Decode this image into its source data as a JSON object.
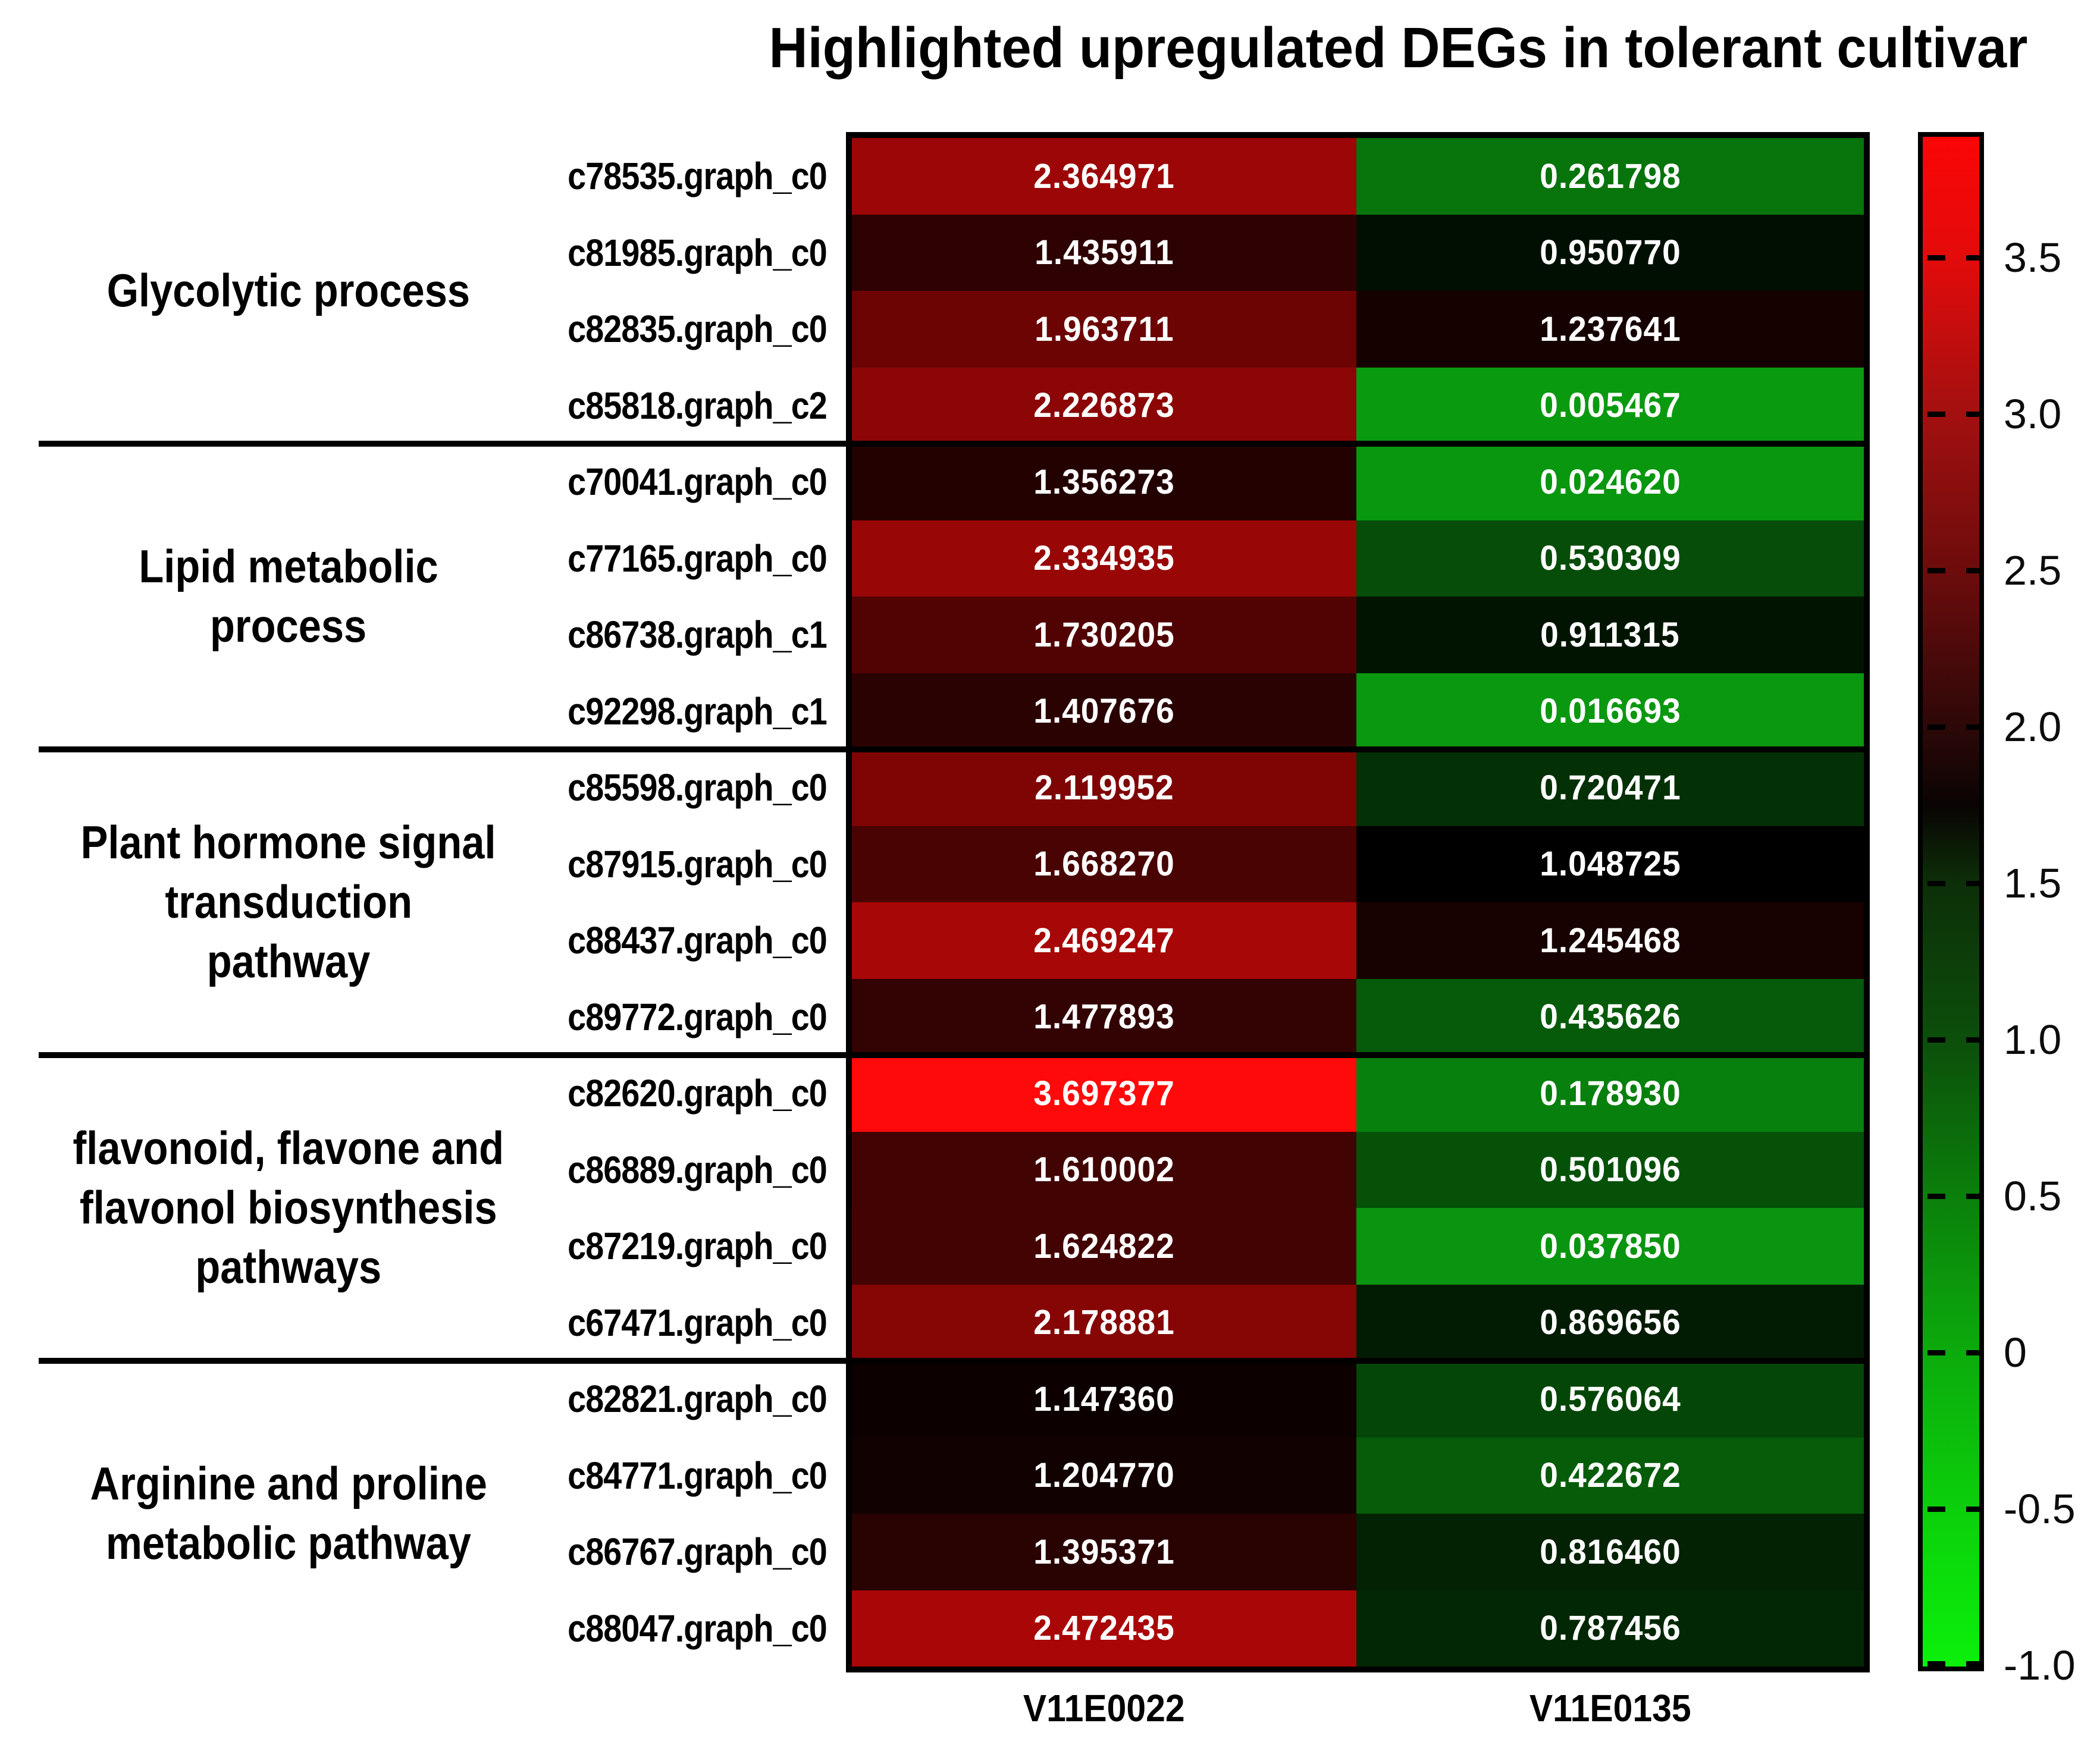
{
  "title": "Highlighted upregulated DEGs in tolerant cultivar",
  "chart_data": {
    "type": "heatmap",
    "title": "Highlighted upregulated DEGs in tolerant cultivar",
    "columns": [
      "V11E0022",
      "V11E0135"
    ],
    "value_range_note": "log-fold-change style values, green-black-red scale",
    "groups": [
      {
        "label": "Glycolytic process",
        "label_lines": [
          "Glycolytic process"
        ],
        "rows": [
          {
            "gene": "c78535.graph_c0",
            "values": [
              "2.364971",
              "0.261798"
            ]
          },
          {
            "gene": "c81985.graph_c0",
            "values": [
              "1.435911",
              "0.950770"
            ]
          },
          {
            "gene": "c82835.graph_c0",
            "values": [
              "1.963711",
              "1.237641"
            ]
          },
          {
            "gene": "c85818.graph_c2",
            "values": [
              "2.226873",
              "0.005467"
            ]
          }
        ]
      },
      {
        "label": "Lipid metabolic process",
        "label_lines": [
          "Lipid metabolic",
          "process"
        ],
        "rows": [
          {
            "gene": "c70041.graph_c0",
            "values": [
              "1.356273",
              "0.024620"
            ]
          },
          {
            "gene": "c77165.graph_c0",
            "values": [
              "2.334935",
              "0.530309"
            ]
          },
          {
            "gene": "c86738.graph_c1",
            "values": [
              "1.730205",
              "0.911315"
            ]
          },
          {
            "gene": "c92298.graph_c1",
            "values": [
              "1.407676",
              "0.016693"
            ]
          }
        ]
      },
      {
        "label": "Plant hormone signal transduction pathway",
        "label_lines": [
          "Plant hormone signal",
          "transduction",
          "pathway"
        ],
        "rows": [
          {
            "gene": "c85598.graph_c0",
            "values": [
              "2.119952",
              "0.720471"
            ]
          },
          {
            "gene": "c87915.graph_c0",
            "values": [
              "1.668270",
              "1.048725"
            ]
          },
          {
            "gene": "c88437.graph_c0",
            "values": [
              "2.469247",
              "1.245468"
            ]
          },
          {
            "gene": "c89772.graph_c0",
            "values": [
              "1.477893",
              "0.435626"
            ]
          }
        ]
      },
      {
        "label": "flavonoid, flavone and flavonol biosynthesis pathways",
        "label_lines": [
          "flavonoid, flavone and",
          "flavonol biosynthesis",
          "pathways"
        ],
        "rows": [
          {
            "gene": "c82620.graph_c0",
            "values": [
              "3.697377",
              "0.178930"
            ]
          },
          {
            "gene": "c86889.graph_c0",
            "values": [
              "1.610002",
              "0.501096"
            ]
          },
          {
            "gene": "c87219.graph_c0",
            "values": [
              "1.624822",
              "0.037850"
            ]
          },
          {
            "gene": "c67471.graph_c0",
            "values": [
              "2.178881",
              "0.869656"
            ]
          }
        ]
      },
      {
        "label": "Arginine and proline metabolic pathway",
        "label_lines": [
          "Arginine and proline",
          "metabolic pathway"
        ],
        "rows": [
          {
            "gene": "c82821.graph_c0",
            "values": [
              "1.147360",
              "0.576064"
            ]
          },
          {
            "gene": "c84771.graph_c0",
            "values": [
              "1.204770",
              "0.422672"
            ]
          },
          {
            "gene": "c86767.graph_c0",
            "values": [
              "1.395371",
              "0.816460"
            ]
          },
          {
            "gene": "c88047.graph_c0",
            "values": [
              "2.472435",
              "0.787456"
            ]
          }
        ]
      }
    ],
    "colorbar": {
      "tick_labels": [
        "3.5",
        "3.0",
        "2.5",
        "2.0",
        "1.5",
        "1.0",
        "0.5",
        "0",
        "-0.5",
        "-1.0"
      ],
      "tick_values": [
        3.5,
        3.0,
        2.5,
        2.0,
        1.5,
        1.0,
        0.5,
        0,
        -0.5,
        -1.0
      ],
      "domain_max": 3.89,
      "domain_min": -1.0,
      "gradient_stops": [
        {
          "color": "#fb0606",
          "pct": 0
        },
        {
          "color": "#e30b0b",
          "pct": 7.9
        },
        {
          "color": "#a31010",
          "pct": 18.1
        },
        {
          "color": "#6d0c0c",
          "pct": 28.4
        },
        {
          "color": "#2d0808",
          "pct": 38.6
        },
        {
          "color": "#0a0404",
          "pct": 43.7
        },
        {
          "color": "#0c2f08",
          "pct": 48.8
        },
        {
          "color": "#0c4f0b",
          "pct": 59.1
        },
        {
          "color": "#0b800b",
          "pct": 69.3
        },
        {
          "color": "#0cab0c",
          "pct": 79.5
        },
        {
          "color": "#0bd00b",
          "pct": 89.8
        },
        {
          "color": "#0bf00b",
          "pct": 100
        }
      ]
    }
  },
  "colors": {
    "background": "#ffffff",
    "text": "#000000",
    "value_text": "#ffffff",
    "grid_border": "#000000",
    "bright_red": "#fb0606",
    "bright_green": "#0bf00b"
  }
}
